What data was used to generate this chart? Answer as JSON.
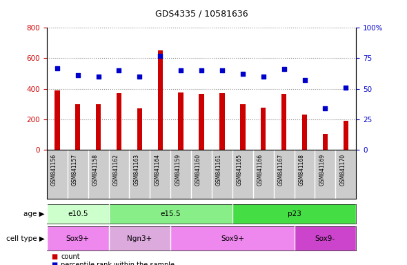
{
  "title": "GDS4335 / 10581636",
  "samples": [
    "GSM841156",
    "GSM841157",
    "GSM841158",
    "GSM841162",
    "GSM841163",
    "GSM841164",
    "GSM841159",
    "GSM841160",
    "GSM841161",
    "GSM841165",
    "GSM841166",
    "GSM841167",
    "GSM841168",
    "GSM841169",
    "GSM841170"
  ],
  "counts": [
    390,
    300,
    300,
    370,
    270,
    650,
    375,
    365,
    370,
    300,
    275,
    365,
    230,
    105,
    190
  ],
  "percentiles": [
    67,
    61,
    60,
    65,
    60,
    77,
    65,
    65,
    65,
    62,
    60,
    66,
    57,
    34,
    51
  ],
  "ylim_left": [
    0,
    800
  ],
  "ylim_right": [
    0,
    100
  ],
  "yticks_left": [
    0,
    200,
    400,
    600,
    800
  ],
  "yticks_right": [
    0,
    25,
    50,
    75,
    100
  ],
  "bar_color": "#cc0000",
  "dot_color": "#0000cc",
  "age_groups": [
    {
      "label": "e10.5",
      "start": 0,
      "end": 3,
      "color": "#ccffcc"
    },
    {
      "label": "e15.5",
      "start": 3,
      "end": 9,
      "color": "#88ee88"
    },
    {
      "label": "p23",
      "start": 9,
      "end": 15,
      "color": "#44dd44"
    }
  ],
  "cell_type_groups": [
    {
      "label": "Sox9+",
      "start": 0,
      "end": 3,
      "color": "#ee88ee"
    },
    {
      "label": "Ngn3+",
      "start": 3,
      "end": 6,
      "color": "#ddaadd"
    },
    {
      "label": "Sox9+",
      "start": 6,
      "end": 12,
      "color": "#ee88ee"
    },
    {
      "label": "Sox9-",
      "start": 12,
      "end": 15,
      "color": "#cc44cc"
    }
  ],
  "age_label": "age",
  "cell_type_label": "cell type",
  "legend_count_label": "count",
  "legend_pct_label": "percentile rank within the sample",
  "grid_color": "#888888",
  "tick_label_color_left": "#cc0000",
  "tick_label_color_right": "#0000cc",
  "axis_bg": "#cccccc",
  "plot_bg": "#ffffff",
  "bar_width": 0.25
}
